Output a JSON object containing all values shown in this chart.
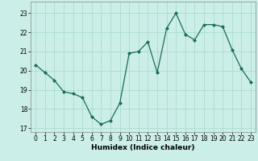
{
  "x": [
    0,
    1,
    2,
    3,
    4,
    5,
    6,
    7,
    8,
    9,
    10,
    11,
    12,
    13,
    14,
    15,
    16,
    17,
    18,
    19,
    20,
    21,
    22,
    23
  ],
  "y": [
    20.3,
    19.9,
    19.5,
    18.9,
    18.8,
    18.6,
    17.6,
    17.2,
    17.4,
    18.3,
    20.9,
    21.0,
    21.5,
    19.9,
    22.2,
    23.0,
    21.9,
    21.6,
    22.4,
    22.4,
    22.3,
    21.1,
    20.1,
    19.4
  ],
  "line_color": "#1a6b5a",
  "marker": "D",
  "markersize": 2.0,
  "linewidth": 0.9,
  "bg_color": "#cceee8",
  "grid_color": "#aaddcc",
  "xlabel": "Humidex (Indice chaleur)",
  "ylim": [
    16.8,
    23.6
  ],
  "xlim": [
    -0.5,
    23.5
  ],
  "yticks": [
    17,
    18,
    19,
    20,
    21,
    22,
    23
  ],
  "xticks": [
    0,
    1,
    2,
    3,
    4,
    5,
    6,
    7,
    8,
    9,
    10,
    11,
    12,
    13,
    14,
    15,
    16,
    17,
    18,
    19,
    20,
    21,
    22,
    23
  ],
  "xlabel_fontsize": 6.5,
  "tick_fontsize": 5.5
}
